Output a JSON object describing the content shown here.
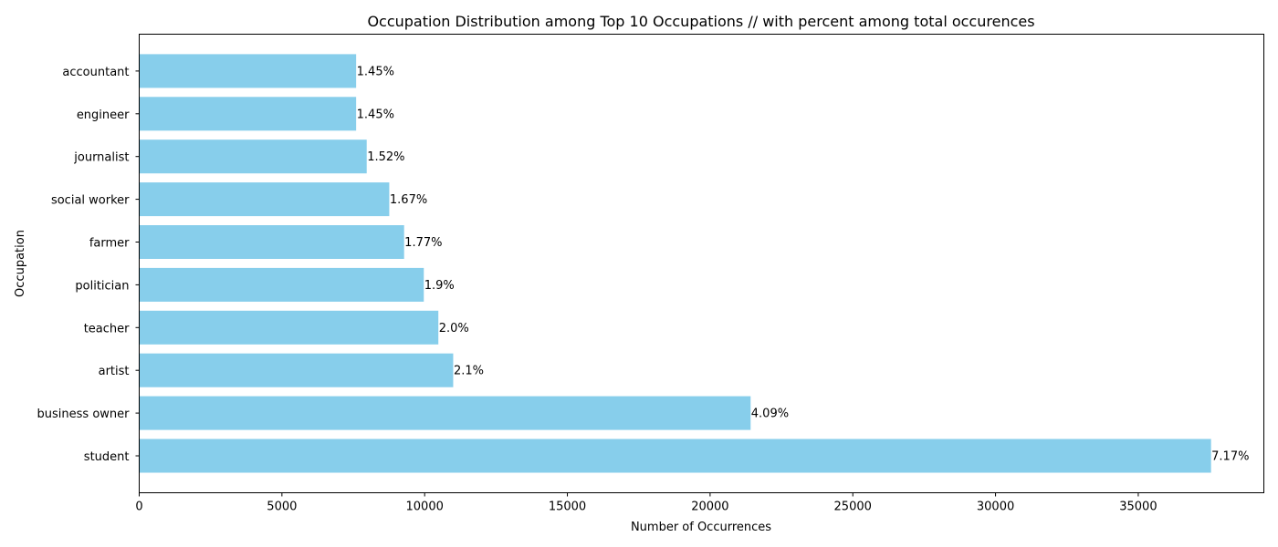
{
  "chart_data": {
    "type": "bar",
    "orientation": "horizontal",
    "title": "Occupation Distribution among Top 10 Occupations // with percent among total occurences",
    "xlabel": "Number of Occurrences",
    "ylabel": "Occupation",
    "categories": [
      "student",
      "business owner",
      "artist",
      "teacher",
      "politician",
      "farmer",
      "social worker",
      "journalist",
      "engineer",
      "accountant"
    ],
    "values": [
      37550,
      21420,
      11000,
      10480,
      9970,
      9280,
      8760,
      7970,
      7600,
      7600
    ],
    "data_labels": [
      "7.17%",
      "4.09%",
      "2.1%",
      "2.0%",
      "1.9%",
      "1.77%",
      "1.67%",
      "1.52%",
      "1.45%",
      "1.45%"
    ],
    "xlim": [
      0,
      39400
    ],
    "xticks": [
      0,
      5000,
      10000,
      15000,
      20000,
      25000,
      30000,
      35000
    ],
    "bar_color": "#87ceeb",
    "grid": false,
    "legend": "none"
  }
}
